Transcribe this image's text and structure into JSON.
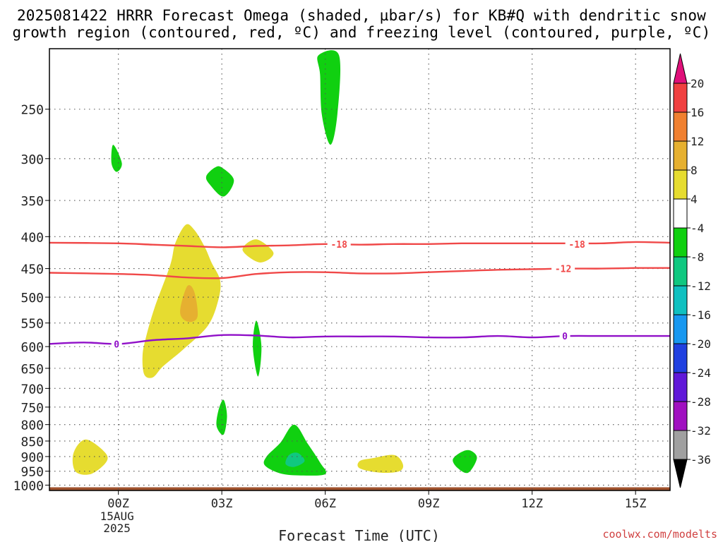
{
  "title": {
    "line1": "2025081422 HRRR Forecast Omega (shaded, µbar/s) for KB#Q with dendritic snow",
    "line2": "growth region (contoured, red, ºC) and freezing level (contoured, purple, ºC)"
  },
  "credit": "coolwx.com/modelts",
  "chart_data": {
    "type": "heatmap",
    "xlabel": "Forecast Time (UTC)",
    "ylabel": "",
    "x_ticks": [
      {
        "value": 0,
        "label": "00Z",
        "sub": [
          "15AUG",
          "2025"
        ]
      },
      {
        "value": 3,
        "label": "03Z"
      },
      {
        "value": 6,
        "label": "06Z"
      },
      {
        "value": 9,
        "label": "09Z"
      },
      {
        "value": 12,
        "label": "12Z"
      },
      {
        "value": 15,
        "label": "15Z"
      }
    ],
    "xlim": [
      -2,
      16
    ],
    "y_ticks": [
      250,
      300,
      350,
      400,
      450,
      500,
      550,
      600,
      650,
      700,
      750,
      800,
      850,
      900,
      950,
      1000
    ],
    "ylim": [
      1020,
      200
    ],
    "y_scale": "log",
    "grid": true,
    "colorbar": {
      "labels": [
        "20",
        "16",
        "12",
        "8",
        "4",
        "-4",
        "-8",
        "-12",
        "-16",
        "-20",
        "-24",
        "-28",
        "-32",
        "-36"
      ],
      "bins": [
        {
          "color": "#f04040"
        },
        {
          "color": "#f08030"
        },
        {
          "color": "#e6b030"
        },
        {
          "color": "#e6dc30"
        },
        {
          "color": "#ffffff"
        },
        {
          "color": "#10d010"
        },
        {
          "color": "#10c880"
        },
        {
          "color": "#10c0c0"
        },
        {
          "color": "#1898f0"
        },
        {
          "color": "#2040e0"
        },
        {
          "color": "#6018d8"
        },
        {
          "color": "#a010c0"
        },
        {
          "color": "#a0a0a0"
        }
      ],
      "top_arrow_color": "#e0107a",
      "bottom_arrow_color": "#000000"
    },
    "ground_color": "#a0522d",
    "surface_pressure": 1008,
    "contours": [
      {
        "name": "-18",
        "color": "#f04848",
        "label_at": [
          [
            6.4,
            411
          ],
          [
            13.3,
            411
          ]
        ],
        "points": [
          [
            -2,
            409
          ],
          [
            0,
            410
          ],
          [
            1,
            412
          ],
          [
            2,
            414
          ],
          [
            3,
            416
          ],
          [
            4,
            414
          ],
          [
            5,
            413
          ],
          [
            6,
            411
          ],
          [
            7,
            412
          ],
          [
            8,
            411
          ],
          [
            9,
            411
          ],
          [
            10,
            410
          ],
          [
            11,
            410
          ],
          [
            12,
            410
          ],
          [
            13,
            410
          ],
          [
            14,
            410
          ],
          [
            15,
            408
          ],
          [
            16,
            409
          ]
        ]
      },
      {
        "name": "-12",
        "color": "#f04848",
        "label_at": [
          [
            12.9,
            450
          ]
        ],
        "points": [
          [
            -2,
            457
          ],
          [
            0,
            459
          ],
          [
            1,
            461
          ],
          [
            2,
            465
          ],
          [
            3,
            466
          ],
          [
            4,
            459
          ],
          [
            5,
            456
          ],
          [
            6,
            456
          ],
          [
            7,
            458
          ],
          [
            8,
            458
          ],
          [
            9,
            456
          ],
          [
            10,
            454
          ],
          [
            11,
            452
          ],
          [
            12,
            451
          ],
          [
            13,
            450
          ],
          [
            14,
            450
          ],
          [
            15,
            449
          ],
          [
            16,
            449
          ]
        ]
      },
      {
        "name": "0",
        "color": "#9010c8",
        "label_at": [
          [
            -0.05,
            594
          ],
          [
            12.95,
            577
          ]
        ],
        "points": [
          [
            -2,
            594
          ],
          [
            -1,
            591
          ],
          [
            0,
            594
          ],
          [
            1,
            586
          ],
          [
            2,
            582
          ],
          [
            3,
            575
          ],
          [
            4,
            576
          ],
          [
            5,
            580
          ],
          [
            6,
            578
          ],
          [
            7,
            578
          ],
          [
            8,
            578
          ],
          [
            9,
            580
          ],
          [
            10,
            580
          ],
          [
            11,
            577
          ],
          [
            12,
            580
          ],
          [
            13,
            577
          ],
          [
            14,
            577
          ],
          [
            15,
            577
          ],
          [
            16,
            577
          ]
        ]
      }
    ],
    "regions": [
      {
        "value": "4 to 8",
        "color": "#e6dc30",
        "points": [
          [
            1.3,
            645
          ],
          [
            1.9,
            605
          ],
          [
            2.6,
            555
          ],
          [
            2.9,
            505
          ],
          [
            2.95,
            470
          ],
          [
            2.7,
            440
          ],
          [
            2.5,
            415
          ],
          [
            2.2,
            390
          ],
          [
            1.95,
            383
          ],
          [
            1.65,
            410
          ],
          [
            1.5,
            445
          ],
          [
            1.05,
            520
          ],
          [
            0.8,
            580
          ],
          [
            0.7,
            620
          ],
          [
            0.75,
            665
          ],
          [
            1.0,
            672
          ]
        ]
      },
      {
        "value": "8 to 12",
        "color": "#e6b030",
        "points": [
          [
            2.0,
            480
          ],
          [
            1.8,
            520
          ],
          [
            1.85,
            540
          ],
          [
            2.1,
            548
          ],
          [
            2.3,
            535
          ],
          [
            2.2,
            490
          ]
        ]
      },
      {
        "value": "4 to 8",
        "color": "#e6dc30",
        "points": [
          [
            3.6,
            420
          ],
          [
            4.0,
            404
          ],
          [
            4.5,
            425
          ],
          [
            4.1,
            440
          ]
        ]
      },
      {
        "value": "4 to 8",
        "color": "#e6dc30",
        "points": [
          [
            -1.3,
            888
          ],
          [
            -0.95,
            845
          ],
          [
            -0.4,
            885
          ],
          [
            -0.35,
            918
          ],
          [
            -0.8,
            960
          ],
          [
            -1.25,
            950
          ]
        ]
      },
      {
        "value": "4 to 8",
        "color": "#e6dc30",
        "points": [
          [
            7.0,
            915
          ],
          [
            7.4,
            905
          ],
          [
            8.0,
            895
          ],
          [
            8.25,
            925
          ],
          [
            8.15,
            950
          ],
          [
            7.6,
            955
          ],
          [
            7.0,
            940
          ]
        ]
      },
      {
        "value": "-4 to -8",
        "color": "#10d010",
        "points": [
          [
            5.8,
            205
          ],
          [
            6.4,
            205
          ],
          [
            6.35,
            255
          ],
          [
            6.15,
            285
          ],
          [
            5.9,
            255
          ],
          [
            5.85,
            220
          ]
        ]
      },
      {
        "value": "-4 to -8",
        "color": "#10d010",
        "points": [
          [
            -0.15,
            285
          ],
          [
            0.1,
            305
          ],
          [
            -0.05,
            315
          ],
          [
            -0.2,
            305
          ]
        ]
      },
      {
        "value": "-4 to -8",
        "color": "#10d010",
        "points": [
          [
            3.0,
            310
          ],
          [
            3.35,
            325
          ],
          [
            3.05,
            345
          ],
          [
            2.65,
            330
          ],
          [
            2.55,
            320
          ],
          [
            2.8,
            310
          ]
        ]
      },
      {
        "value": "-4 to -8",
        "color": "#10d010",
        "points": [
          [
            4.0,
            545
          ],
          [
            4.15,
            600
          ],
          [
            4.05,
            670
          ],
          [
            3.9,
            600
          ]
        ]
      },
      {
        "value": "-4 to -8",
        "color": "#10d010",
        "points": [
          [
            3.05,
            730
          ],
          [
            3.15,
            775
          ],
          [
            3.05,
            830
          ],
          [
            2.85,
            805
          ],
          [
            2.9,
            760
          ]
        ]
      },
      {
        "value": "-4 to -8",
        "color": "#10d010",
        "points": [
          [
            4.3,
            900
          ],
          [
            4.7,
            855
          ],
          [
            5.1,
            800
          ],
          [
            5.5,
            860
          ],
          [
            5.85,
            920
          ],
          [
            6.0,
            960
          ],
          [
            5.3,
            965
          ],
          [
            4.7,
            958
          ],
          [
            4.25,
            930
          ]
        ]
      },
      {
        "value": "-8 to -12",
        "color": "#10c880",
        "points": [
          [
            4.95,
            895
          ],
          [
            5.2,
            888
          ],
          [
            5.4,
            915
          ],
          [
            5.1,
            935
          ],
          [
            4.85,
            925
          ]
        ]
      },
      {
        "value": "-4 to -8",
        "color": "#10d010",
        "points": [
          [
            9.95,
            885
          ],
          [
            10.2,
            880
          ],
          [
            10.4,
            905
          ],
          [
            10.15,
            955
          ],
          [
            9.85,
            940
          ],
          [
            9.7,
            910
          ]
        ]
      }
    ]
  }
}
